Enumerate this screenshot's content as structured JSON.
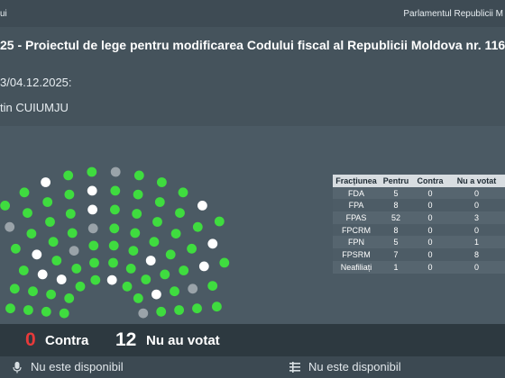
{
  "topbar": {
    "left_text": "ui",
    "right_text": "Parlamentul Republicii M"
  },
  "header": {
    "title": "25 - Proiectul de lege pentru modificarea Codului fiscal al Republicii Moldova nr. 116",
    "date": "3/04.12.2025:",
    "author": "tin CUIUMJU"
  },
  "table": {
    "headers": [
      "Fracțiunea",
      "Pentru",
      "Contra",
      "Nu a votat"
    ],
    "rows": [
      [
        "FDA",
        "5",
        "0",
        "0"
      ],
      [
        "FPA",
        "8",
        "0",
        "0"
      ],
      [
        "FPAS",
        "52",
        "0",
        "3"
      ],
      [
        "FPCRM",
        "8",
        "0",
        "0"
      ],
      [
        "FPN",
        "5",
        "0",
        "1"
      ],
      [
        "FPSRM",
        "7",
        "0",
        "8"
      ],
      [
        "Neafiliați",
        "1",
        "0",
        "0"
      ]
    ]
  },
  "summary": {
    "contra_count": "0",
    "contra_label": "Contra",
    "not_voted_count": "12",
    "not_voted_label": "Nu au votat"
  },
  "footer": {
    "left_status": "Nu este disponibil",
    "right_status": "Nu este disponibil"
  },
  "colors": {
    "for": "#3fdc3f",
    "not_voted": "#ffffff",
    "absent": "#9aa3a9",
    "contra": "#e83a3a"
  },
  "seats": {
    "counts": {
      "for": 86,
      "not_voted": 12,
      "absent": 6
    }
  }
}
